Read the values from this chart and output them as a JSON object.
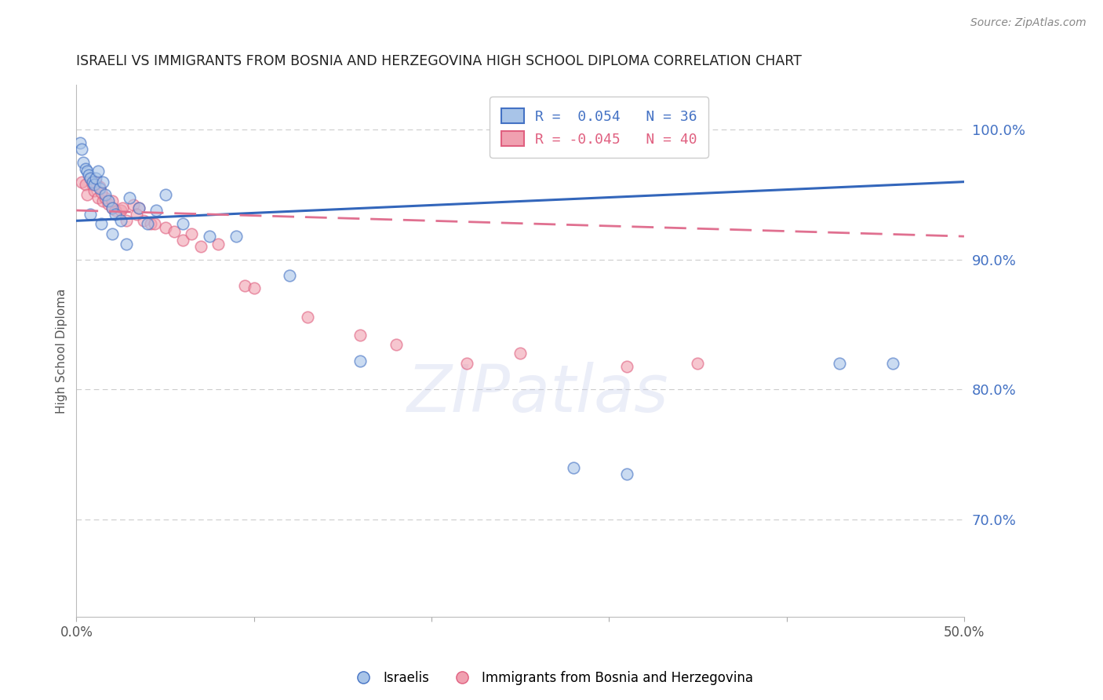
{
  "title": "ISRAELI VS IMMIGRANTS FROM BOSNIA AND HERZEGOVINA HIGH SCHOOL DIPLOMA CORRELATION CHART",
  "source": "Source: ZipAtlas.com",
  "ylabel": "High School Diploma",
  "xlim": [
    0.0,
    0.5
  ],
  "ylim": [
    0.625,
    1.035
  ],
  "xticks": [
    0.0,
    0.1,
    0.2,
    0.3,
    0.4,
    0.5
  ],
  "xticklabels": [
    "0.0%",
    "",
    "",
    "",
    "",
    "50.0%"
  ],
  "yticks_right": [
    0.7,
    0.8,
    0.9,
    1.0
  ],
  "ytick_right_labels": [
    "70.0%",
    "80.0%",
    "90.0%",
    "100.0%"
  ],
  "legend_blue_color": "#4472C4",
  "legend_pink_color": "#E06080",
  "dot_blue_color": "#A8C4E8",
  "dot_pink_color": "#F0A0B0",
  "line_blue_color": "#3366BB",
  "line_pink_color": "#E07090",
  "grid_color": "#CCCCCC",
  "title_color": "#222222",
  "axis_label_color": "#555555",
  "right_tick_color": "#4472C4",
  "watermark_color": "#C0C8E8",
  "israeli_x": [
    0.002,
    0.003,
    0.004,
    0.005,
    0.006,
    0.007,
    0.008,
    0.009,
    0.01,
    0.011,
    0.012,
    0.013,
    0.015,
    0.016,
    0.018,
    0.02,
    0.022,
    0.025,
    0.03,
    0.035,
    0.04,
    0.045,
    0.05,
    0.06,
    0.075,
    0.09,
    0.12,
    0.16,
    0.28,
    0.31,
    0.43,
    0.46,
    0.008,
    0.014,
    0.02,
    0.028
  ],
  "israeli_y": [
    0.99,
    0.985,
    0.975,
    0.97,
    0.968,
    0.965,
    0.963,
    0.96,
    0.958,
    0.963,
    0.968,
    0.955,
    0.96,
    0.95,
    0.945,
    0.94,
    0.935,
    0.93,
    0.948,
    0.94,
    0.928,
    0.938,
    0.95,
    0.928,
    0.918,
    0.918,
    0.888,
    0.822,
    0.74,
    0.735,
    0.82,
    0.82,
    0.935,
    0.928,
    0.92,
    0.912
  ],
  "bosnia_x": [
    0.003,
    0.005,
    0.006,
    0.008,
    0.009,
    0.01,
    0.011,
    0.012,
    0.013,
    0.015,
    0.016,
    0.018,
    0.02,
    0.022,
    0.025,
    0.028,
    0.032,
    0.035,
    0.038,
    0.042,
    0.05,
    0.06,
    0.065,
    0.07,
    0.095,
    0.1,
    0.13,
    0.16,
    0.18,
    0.22,
    0.25,
    0.31,
    0.35,
    0.014,
    0.02,
    0.026,
    0.034,
    0.044,
    0.055,
    0.08
  ],
  "bosnia_y": [
    0.96,
    0.958,
    0.95,
    0.963,
    0.958,
    0.953,
    0.96,
    0.948,
    0.956,
    0.945,
    0.948,
    0.943,
    0.94,
    0.938,
    0.938,
    0.93,
    0.942,
    0.94,
    0.93,
    0.928,
    0.925,
    0.915,
    0.92,
    0.91,
    0.88,
    0.878,
    0.856,
    0.842,
    0.835,
    0.82,
    0.828,
    0.818,
    0.82,
    0.952,
    0.945,
    0.94,
    0.935,
    0.928,
    0.922,
    0.912
  ],
  "dot_size": 110,
  "dot_alpha": 0.6,
  "dot_linewidth": 1.2,
  "israeli_line_x0": 0.0,
  "israeli_line_y0": 0.93,
  "israeli_line_x1": 0.5,
  "israeli_line_y1": 0.96,
  "bosnia_line_x0": 0.0,
  "bosnia_line_y0": 0.938,
  "bosnia_line_x1": 0.5,
  "bosnia_line_y1": 0.918
}
